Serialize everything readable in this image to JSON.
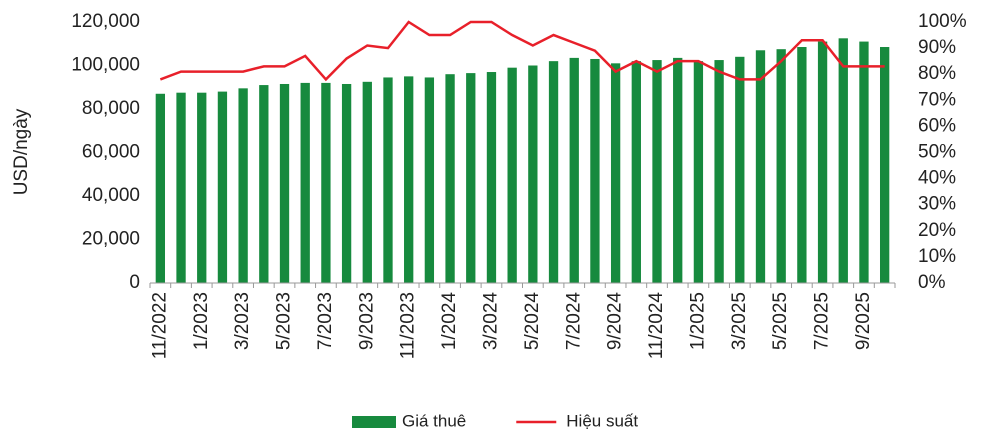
{
  "chart_data": {
    "type": "bar-line",
    "y_label": "USD/ngày",
    "categories": [
      "11/2022",
      null,
      "1/2023",
      null,
      "3/2023",
      null,
      "5/2023",
      null,
      "7/2023",
      null,
      "9/2023",
      null,
      "11/2023",
      null,
      "1/2024",
      null,
      "3/2024",
      null,
      "5/2024",
      null,
      "7/2024",
      null,
      "9/2024",
      null,
      "11/2024",
      null,
      "1/2025",
      null,
      "3/2025",
      null,
      "5/2025",
      null,
      "7/2025",
      null,
      "9/2025",
      null
    ],
    "series": [
      {
        "name": "Giá thuê",
        "type": "bar",
        "color": "#178a3e",
        "values": [
          87000,
          87500,
          87500,
          88000,
          89500,
          91000,
          91500,
          92000,
          92000,
          91500,
          92500,
          94500,
          95000,
          94500,
          96000,
          96500,
          97000,
          99000,
          100000,
          102000,
          103500,
          103000,
          101000,
          102000,
          102500,
          103500,
          102000,
          102500,
          104000,
          107000,
          107500,
          108500,
          111000,
          112500,
          111000,
          108500
        ]
      },
      {
        "name": "Hiệu suất",
        "type": "line",
        "axis": "y2",
        "color": "#e8202a",
        "values": [
          78,
          81,
          81,
          81,
          81,
          83,
          83,
          87,
          78,
          86,
          91,
          90,
          100,
          95,
          95,
          100,
          100,
          95,
          91,
          95,
          92,
          89,
          81,
          85,
          81,
          85,
          85,
          81,
          78,
          78,
          85,
          93,
          93,
          83,
          83,
          83
        ]
      }
    ],
    "ylim": [
      0,
      120000
    ],
    "yticks": [
      0,
      {
        "value": 20000,
        "label": "20,000"
      },
      {
        "value": 40000,
        "label": "40,000"
      },
      {
        "value": 60000,
        "label": "60,000"
      },
      {
        "value": 80000,
        "label": "80,000"
      },
      {
        "value": 100000,
        "label": "100,000"
      },
      {
        "value": 120000,
        "label": "120,000"
      }
    ],
    "y2lim": [
      0,
      100
    ],
    "y2ticks": [
      {
        "value": 0,
        "label": "0%"
      },
      {
        "value": 10,
        "label": "10%"
      },
      {
        "value": 20,
        "label": "20%"
      },
      {
        "value": 30,
        "label": "30%"
      },
      {
        "value": 40,
        "label": "40%"
      },
      {
        "value": 50,
        "label": "50%"
      },
      {
        "value": 60,
        "label": "60%"
      },
      {
        "value": 70,
        "label": "70%"
      },
      {
        "value": 80,
        "label": "80%"
      },
      {
        "value": 90,
        "label": "90%"
      },
      {
        "value": 100,
        "label": "100%"
      }
    ],
    "legend": "bottom",
    "grid": false
  }
}
